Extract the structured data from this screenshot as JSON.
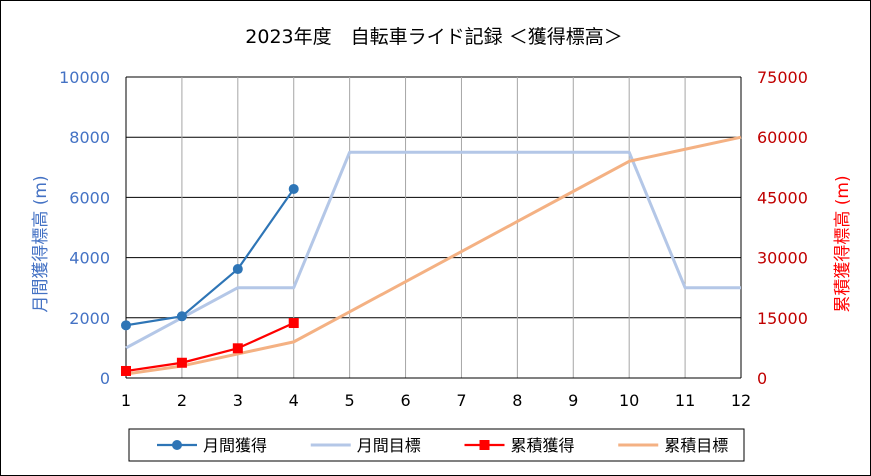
{
  "chart_data": {
    "type": "line",
    "title": "2023年度　自転車ライド記録 ＜獲得標高＞",
    "xlabel": "",
    "categories": [
      "1",
      "2",
      "3",
      "4",
      "5",
      "6",
      "7",
      "8",
      "9",
      "10",
      "11",
      "12"
    ],
    "y_left": {
      "label": "月間獲得標高 (m)",
      "range": [
        0,
        10000
      ],
      "ticks": [
        0,
        2000,
        4000,
        6000,
        8000,
        10000
      ]
    },
    "y_right": {
      "label": "累積獲得標高 (m)",
      "range": [
        0,
        75000
      ],
      "ticks": [
        0,
        15000,
        30000,
        45000,
        60000,
        75000
      ]
    },
    "grid": true,
    "legend_position": "bottom",
    "series": [
      {
        "name": "月間獲得",
        "axis": "left",
        "color": "#2e75b6",
        "marker": "circle",
        "values": [
          1750,
          2050,
          3620,
          6280,
          null,
          null,
          null,
          null,
          null,
          null,
          null,
          null
        ]
      },
      {
        "name": "月間目標",
        "axis": "left",
        "color": "#b4c7e7",
        "marker": "none",
        "values": [
          1000,
          2000,
          3000,
          3000,
          7500,
          7500,
          7500,
          7500,
          7500,
          7500,
          3000,
          3000
        ]
      },
      {
        "name": "累積獲得",
        "axis": "right",
        "color": "#ff0000",
        "line_color": "#ff0000",
        "marker": "square",
        "values": [
          1750,
          3800,
          7400,
          13700,
          null,
          null,
          null,
          null,
          null,
          null,
          null,
          null
        ]
      },
      {
        "name": "累積目標",
        "axis": "right",
        "color": "#f4b183",
        "marker": "none",
        "values": [
          1000,
          3000,
          6000,
          9000,
          16500,
          24000,
          31500,
          39000,
          46500,
          54000,
          57000,
          60000
        ]
      }
    ]
  },
  "colors": {
    "left_axis_text": "#4472c4",
    "right_axis_text": "#ff0000",
    "right_tick_text": "#c00000",
    "grid": "#000000"
  }
}
